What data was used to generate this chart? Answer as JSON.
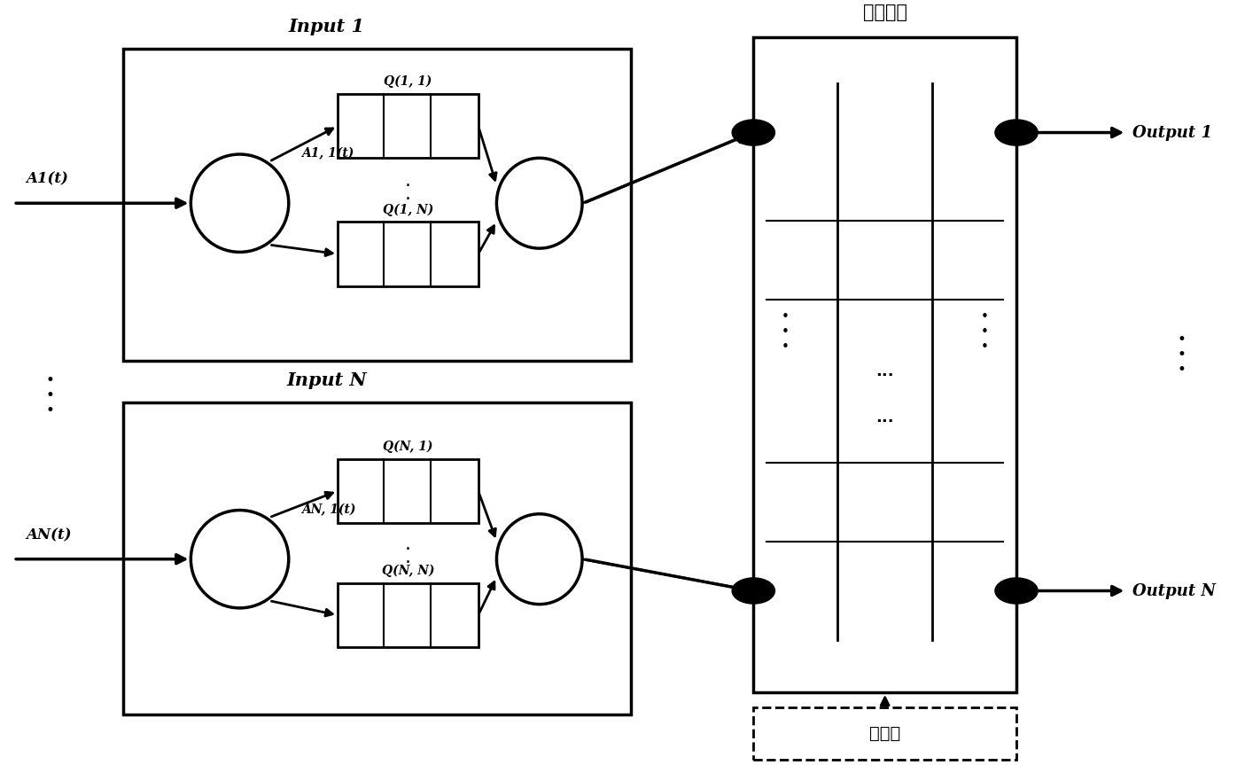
{
  "fig_width": 13.96,
  "fig_height": 8.63,
  "bg_color": "#ffffff",
  "label_input1": "Input 1",
  "label_inputN": "Input N",
  "label_switch": "交换结构",
  "label_scheduler": "调度器",
  "label_output1": "Output 1",
  "label_outputN": "Output N",
  "label_A1t": "A1(t)",
  "label_ANt": "AN(t)",
  "label_A11t": "A1, 1(t)",
  "label_AN1t": "AN, 1(t)",
  "label_Q11": "Q(1, 1)",
  "label_Q1N": "Q(1, N)",
  "label_QN1": "Q(N, 1)",
  "label_QNN": "Q(N, N)"
}
